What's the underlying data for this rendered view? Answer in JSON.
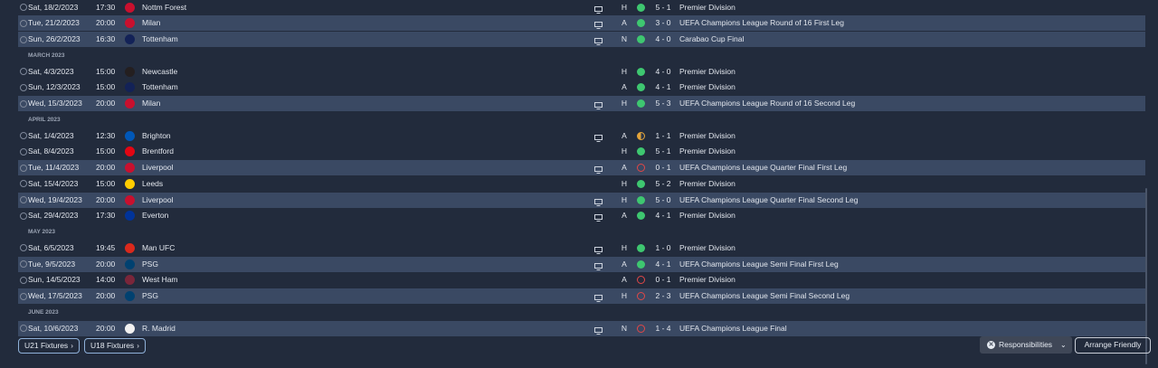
{
  "colors": {
    "win": "#3ec770",
    "loss": "#e14747",
    "draw": "#e3a43a",
    "highlight_row": "#3a4963"
  },
  "fixtures": [
    {
      "kind": "match",
      "date": "Sat, 18/2/2023",
      "time": "17:30",
      "opponent": "Nottm Forest",
      "crest": "nottm-forest-crest",
      "crest_color": "#c8102e",
      "tv": true,
      "venue": "H",
      "result": "W",
      "score": "5 - 1",
      "competition": "Premier Division",
      "highlight": false
    },
    {
      "kind": "match",
      "date": "Tue, 21/2/2023",
      "time": "20:00",
      "opponent": "Milan",
      "crest": "milan-crest",
      "crest_color": "#c8102e",
      "tv": true,
      "venue": "A",
      "result": "W",
      "score": "3 - 0",
      "competition": "UEFA Champions League Round of 16 First Leg",
      "highlight": true
    },
    {
      "kind": "match",
      "date": "Sun, 26/2/2023",
      "time": "16:30",
      "opponent": "Tottenham",
      "crest": "tottenham-crest",
      "crest_color": "#132257",
      "tv": true,
      "venue": "N",
      "result": "W",
      "score": "4 - 0",
      "competition": "Carabao Cup Final",
      "highlight": true
    },
    {
      "kind": "month",
      "label": "MARCH 2023"
    },
    {
      "kind": "match",
      "date": "Sat, 4/3/2023",
      "time": "15:00",
      "opponent": "Newcastle",
      "crest": "newcastle-crest",
      "crest_color": "#241f20",
      "tv": false,
      "venue": "H",
      "result": "W",
      "score": "4 - 0",
      "competition": "Premier Division",
      "highlight": false
    },
    {
      "kind": "match",
      "date": "Sun, 12/3/2023",
      "time": "15:00",
      "opponent": "Tottenham",
      "crest": "tottenham-crest",
      "crest_color": "#132257",
      "tv": false,
      "venue": "A",
      "result": "W",
      "score": "4 - 1",
      "competition": "Premier Division",
      "highlight": false
    },
    {
      "kind": "match",
      "date": "Wed, 15/3/2023",
      "time": "20:00",
      "opponent": "Milan",
      "crest": "milan-crest",
      "crest_color": "#c8102e",
      "tv": true,
      "venue": "H",
      "result": "W",
      "score": "5 - 3",
      "competition": "UEFA Champions League Round of 16 Second Leg",
      "highlight": true
    },
    {
      "kind": "month",
      "label": "APRIL 2023"
    },
    {
      "kind": "match",
      "date": "Sat, 1/4/2023",
      "time": "12:30",
      "opponent": "Brighton",
      "crest": "brighton-crest",
      "crest_color": "#0057b8",
      "tv": true,
      "venue": "A",
      "result": "D",
      "score": "1 - 1",
      "competition": "Premier Division",
      "highlight": false
    },
    {
      "kind": "match",
      "date": "Sat, 8/4/2023",
      "time": "15:00",
      "opponent": "Brentford",
      "crest": "brentford-crest",
      "crest_color": "#e30613",
      "tv": false,
      "venue": "H",
      "result": "W",
      "score": "5 - 1",
      "competition": "Premier Division",
      "highlight": false
    },
    {
      "kind": "match",
      "date": "Tue, 11/4/2023",
      "time": "20:00",
      "opponent": "Liverpool",
      "crest": "liverpool-crest",
      "crest_color": "#c8102e",
      "tv": true,
      "venue": "A",
      "result": "L",
      "score": "0 - 1",
      "competition": "UEFA Champions League Quarter Final First Leg",
      "highlight": true
    },
    {
      "kind": "match",
      "date": "Sat, 15/4/2023",
      "time": "15:00",
      "opponent": "Leeds",
      "crest": "leeds-crest",
      "crest_color": "#ffcd00",
      "tv": false,
      "venue": "H",
      "result": "W",
      "score": "5 - 2",
      "competition": "Premier Division",
      "highlight": false
    },
    {
      "kind": "match",
      "date": "Wed, 19/4/2023",
      "time": "20:00",
      "opponent": "Liverpool",
      "crest": "liverpool-crest",
      "crest_color": "#c8102e",
      "tv": true,
      "venue": "H",
      "result": "W",
      "score": "5 - 0",
      "competition": "UEFA Champions League Quarter Final Second Leg",
      "highlight": true
    },
    {
      "kind": "match",
      "date": "Sat, 29/4/2023",
      "time": "17:30",
      "opponent": "Everton",
      "crest": "everton-crest",
      "crest_color": "#003399",
      "tv": true,
      "venue": "A",
      "result": "W",
      "score": "4 - 1",
      "competition": "Premier Division",
      "highlight": false
    },
    {
      "kind": "month",
      "label": "MAY 2023"
    },
    {
      "kind": "match",
      "date": "Sat, 6/5/2023",
      "time": "19:45",
      "opponent": "Man UFC",
      "crest": "man-ufc-crest",
      "crest_color": "#da291c",
      "tv": true,
      "venue": "H",
      "result": "W",
      "score": "1 - 0",
      "competition": "Premier Division",
      "highlight": false
    },
    {
      "kind": "match",
      "date": "Tue, 9/5/2023",
      "time": "20:00",
      "opponent": "PSG",
      "crest": "psg-crest",
      "crest_color": "#004170",
      "tv": true,
      "venue": "A",
      "result": "W",
      "score": "4 - 1",
      "competition": "UEFA Champions League Semi Final First Leg",
      "highlight": true
    },
    {
      "kind": "match",
      "date": "Sun, 14/5/2023",
      "time": "14:00",
      "opponent": "West Ham",
      "crest": "west-ham-crest",
      "crest_color": "#7a263a",
      "tv": false,
      "venue": "A",
      "result": "L",
      "score": "0 - 1",
      "competition": "Premier Division",
      "highlight": false
    },
    {
      "kind": "match",
      "date": "Wed, 17/5/2023",
      "time": "20:00",
      "opponent": "PSG",
      "crest": "psg-crest",
      "crest_color": "#004170",
      "tv": true,
      "venue": "H",
      "result": "L",
      "score": "2 - 3",
      "competition": "UEFA Champions League Semi Final Second Leg",
      "highlight": true
    },
    {
      "kind": "month",
      "label": "JUNE 2023"
    },
    {
      "kind": "match",
      "date": "Sat, 10/6/2023",
      "time": "20:00",
      "opponent": "R. Madrid",
      "crest": "real-madrid-crest",
      "crest_color": "#f1f1f1",
      "tv": true,
      "venue": "N",
      "result": "L",
      "score": "1 - 4",
      "competition": "UEFA Champions League Final",
      "highlight": true
    }
  ],
  "footer": {
    "u21_label": "U21 Fixtures",
    "u18_label": "U18 Fixtures",
    "responsibilities_label": "Responsibilities",
    "arrange_label": "Arrange Friendly"
  }
}
